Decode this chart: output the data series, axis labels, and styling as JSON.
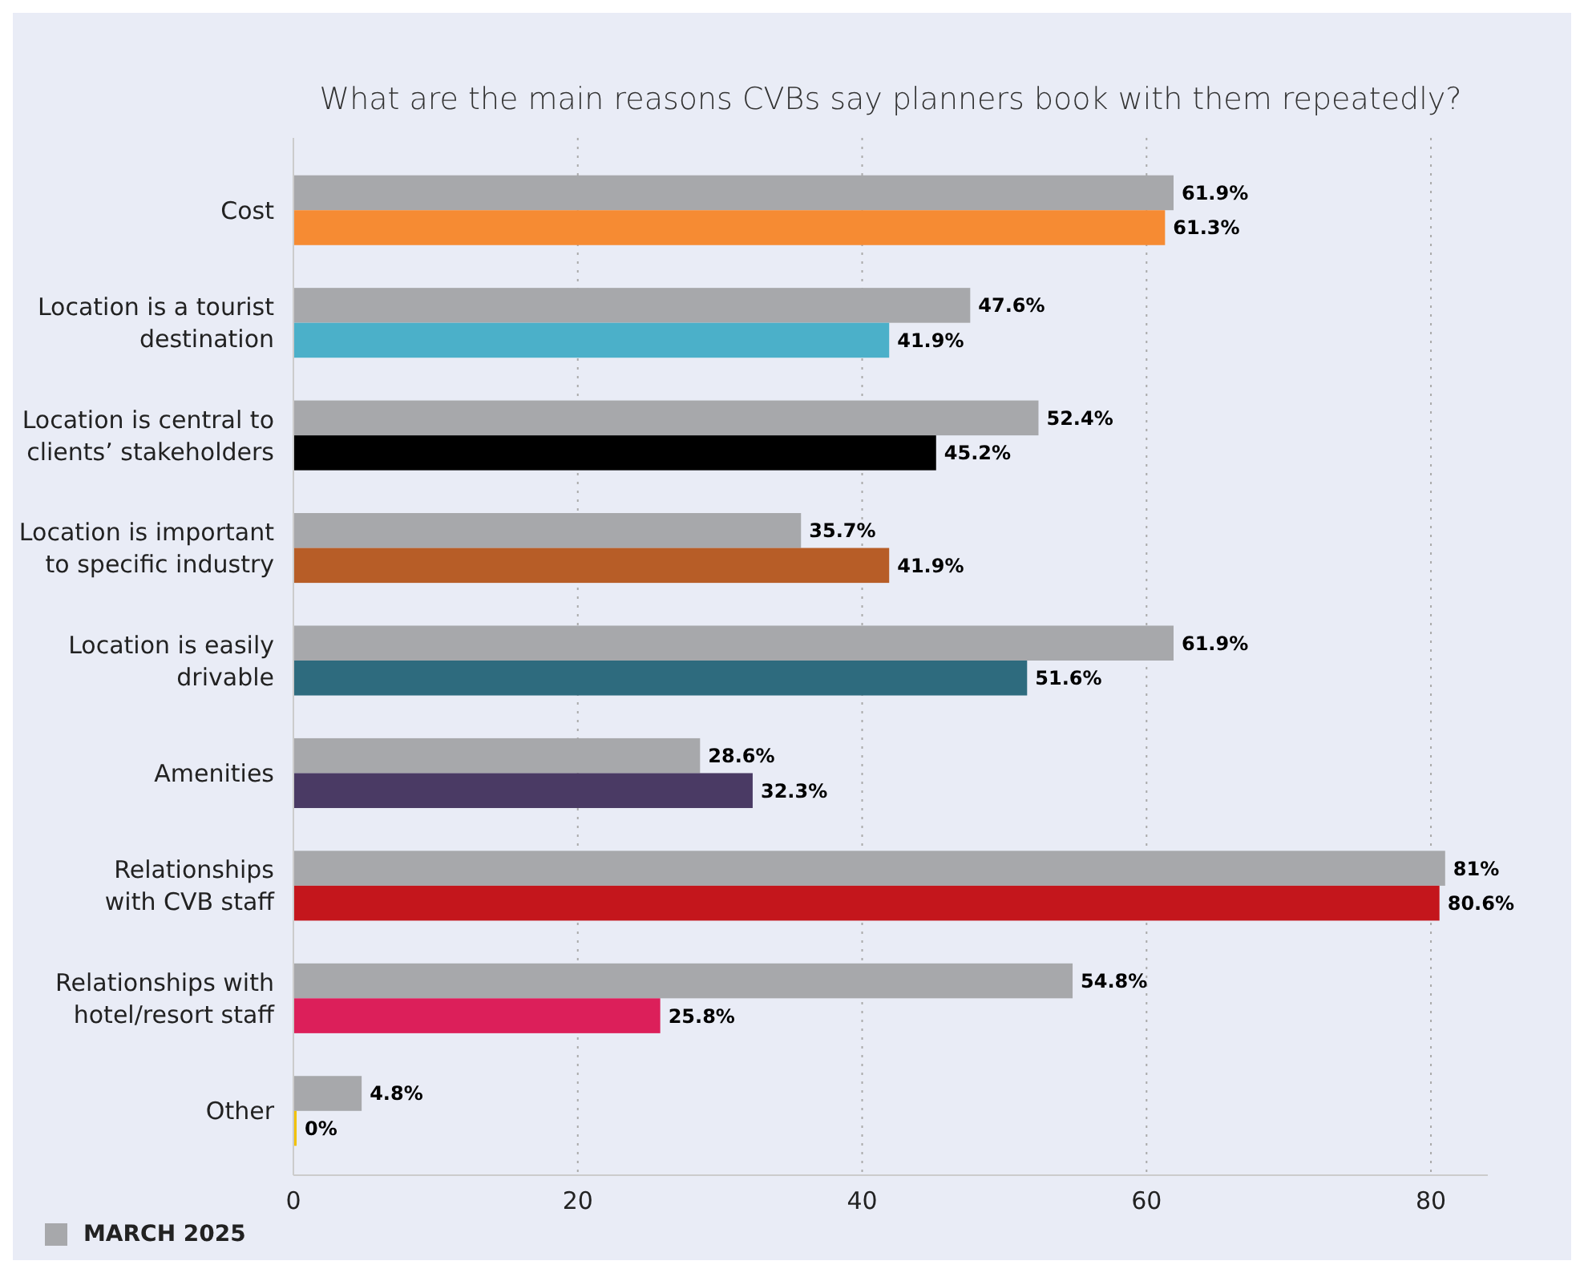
{
  "chart_data": {
    "type": "bar",
    "orientation": "horizontal",
    "title": "What are the main reasons CVBs say planners book with them repeatedly?",
    "categories": [
      "Cost",
      "Location is a tourist\ndestination",
      "Location is central to\nclients’ stakeholders",
      "Location is important\nto specific industry",
      "Location is easily\ndrivable",
      "Amenities",
      "Relationships\nwith CVB staff",
      "Relationships with\nhotel/resort staff",
      "Other"
    ],
    "series": [
      {
        "name": "MARCH 2025",
        "color": "#a7a8ab",
        "values": [
          61.9,
          47.6,
          52.4,
          35.7,
          61.9,
          28.6,
          81,
          54.8,
          4.8
        ],
        "value_labels": [
          "61.9%",
          "47.6%",
          "52.4%",
          "35.7%",
          "61.9%",
          "28.6%",
          "81%",
          "54.8%",
          "4.8%"
        ]
      },
      {
        "colors": [
          "#f68b33",
          "#4bb0c9",
          "#000000",
          "#b75d27",
          "#2e6b7e",
          "#4a3a64",
          "#c4161c",
          "#dc1f5a",
          "#f2c100"
        ],
        "values": [
          61.3,
          41.9,
          45.2,
          41.9,
          51.6,
          32.3,
          80.6,
          25.8,
          0
        ],
        "value_labels": [
          "61.3%",
          "41.9%",
          "45.2%",
          "41.9%",
          "51.6%",
          "32.3%",
          "80.6%",
          "25.8%",
          "0%"
        ]
      }
    ],
    "xlim": [
      0,
      84
    ],
    "xticks": [
      0,
      20,
      40,
      60,
      80
    ],
    "grid": "x",
    "legend": "bottom left"
  }
}
